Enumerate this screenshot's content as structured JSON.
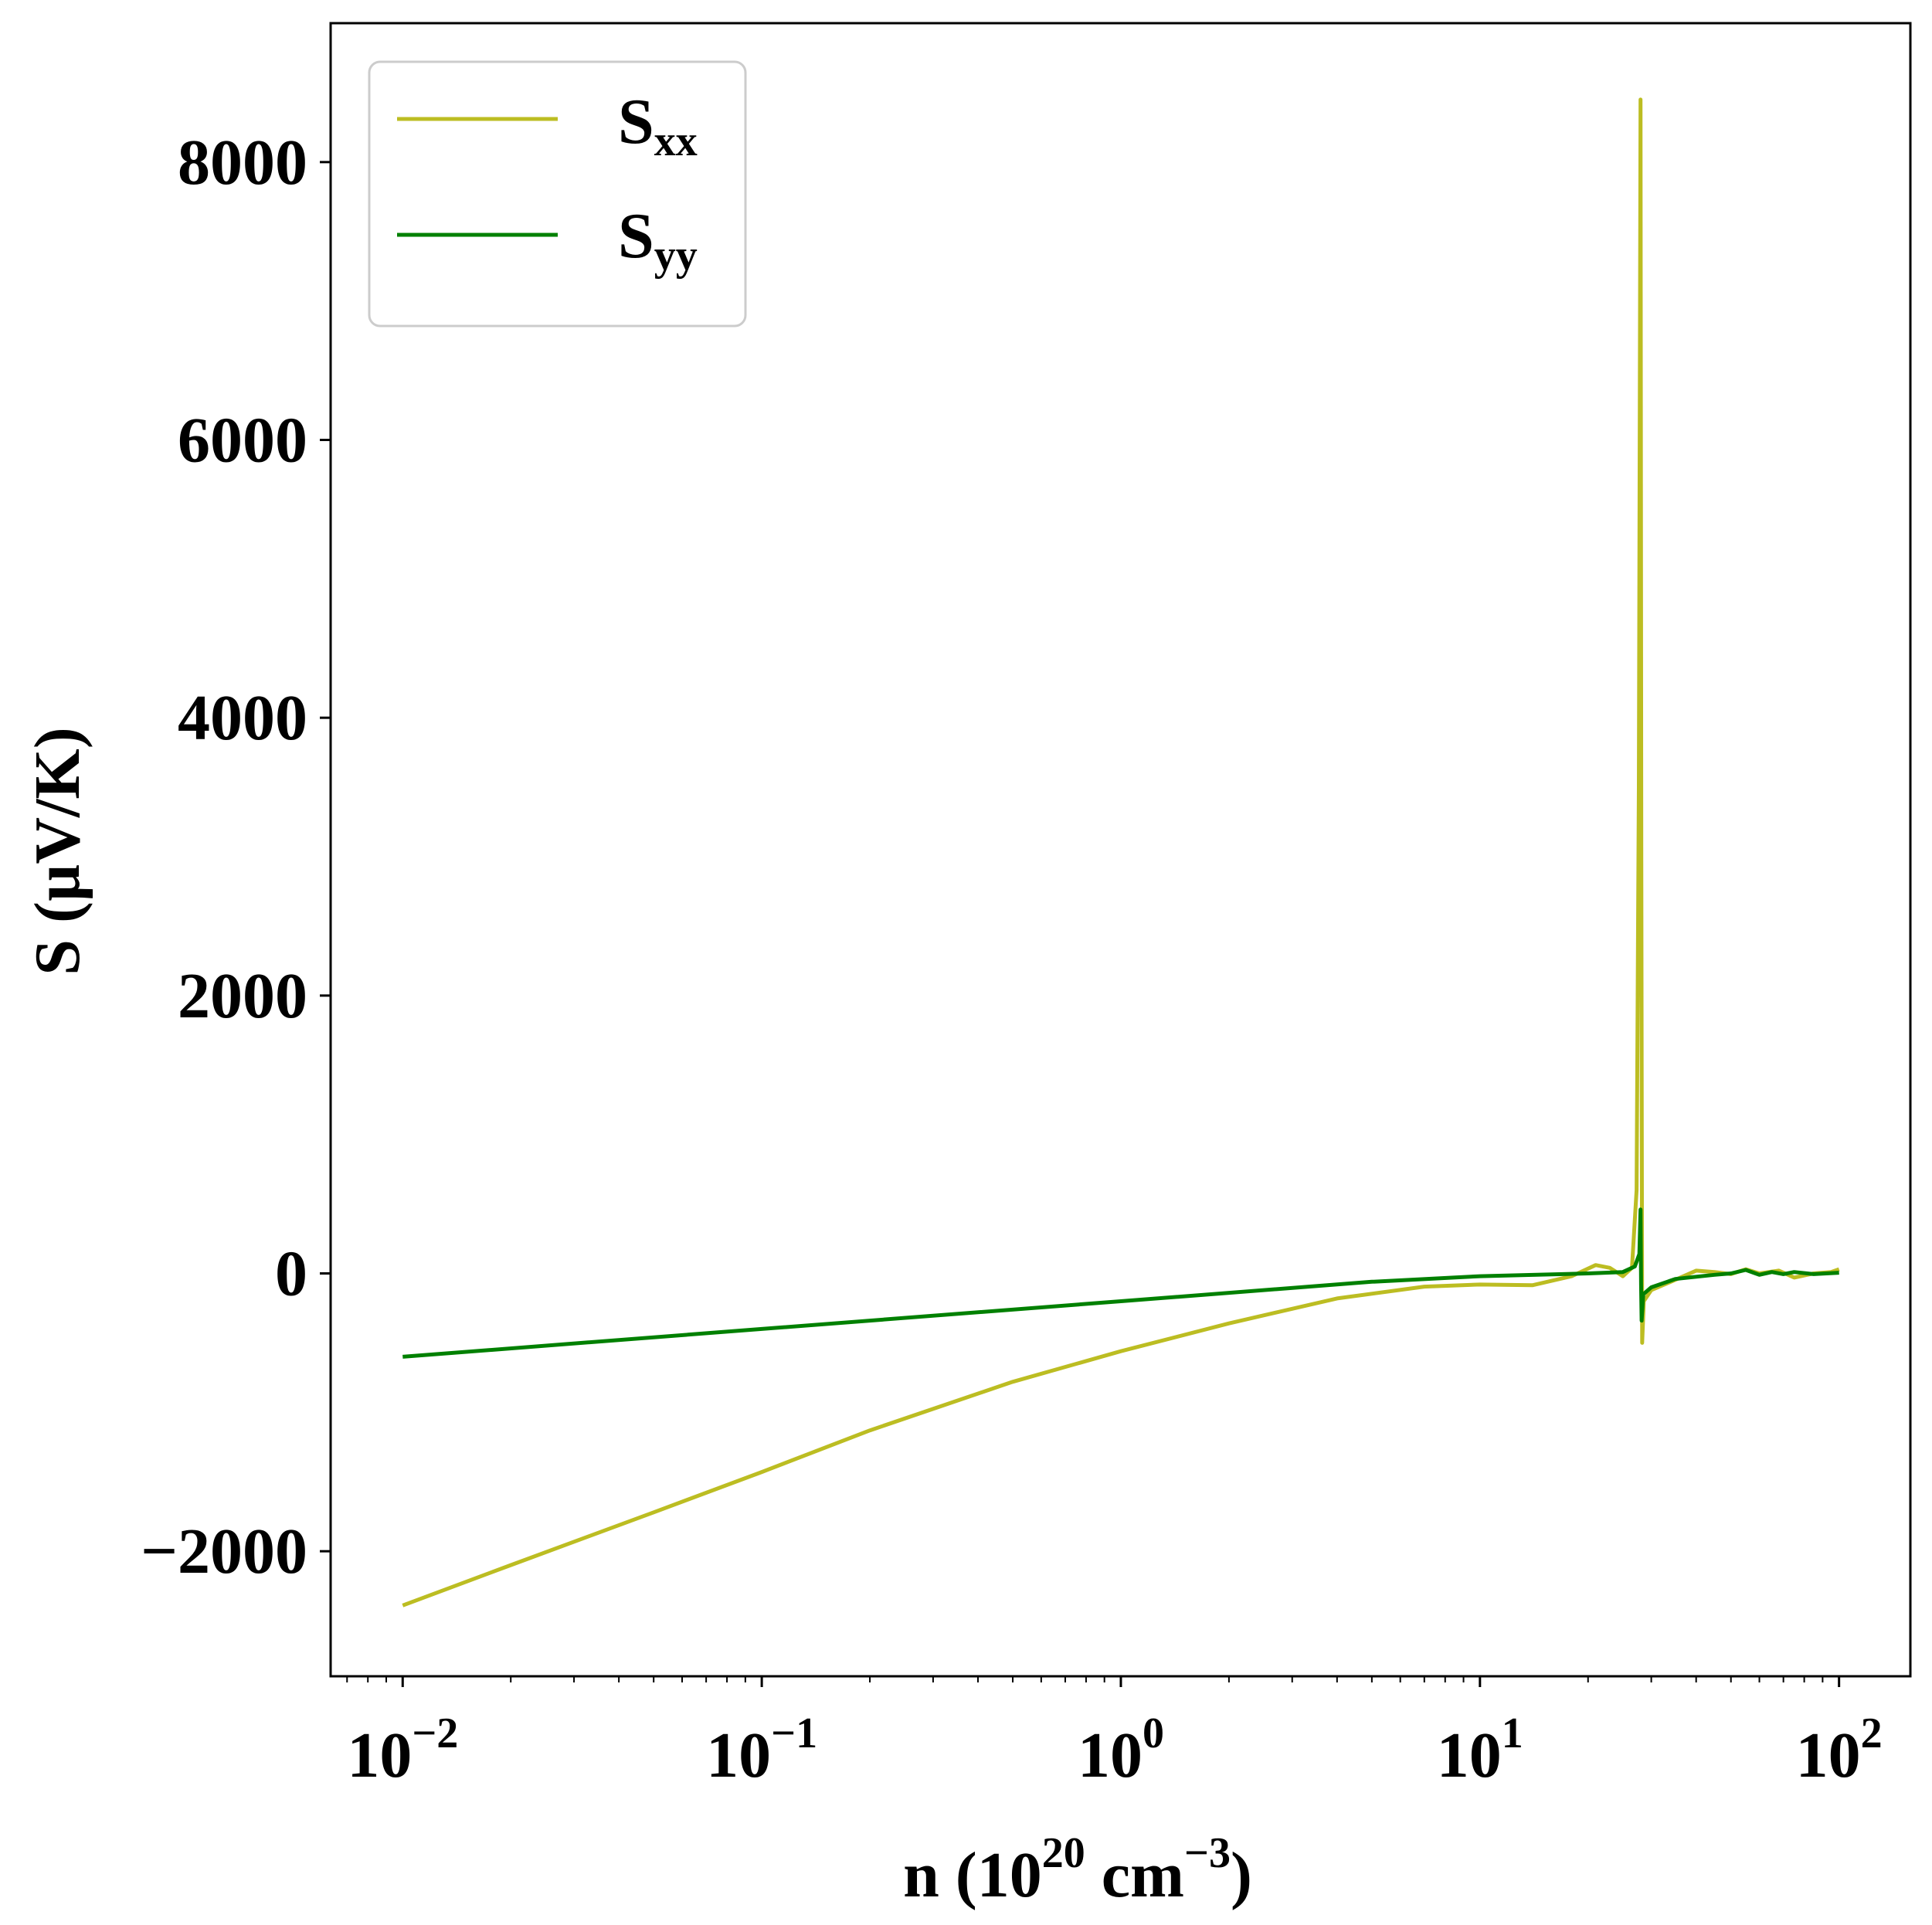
{
  "chart_data": {
    "type": "line",
    "xscale": "log",
    "xlim": [
      0.0063,
      158
    ],
    "ylim": [
      -2900,
      9000
    ],
    "grid": false,
    "legend_position": "upper-left",
    "xlabel": {
      "base": "n (10",
      "exp1": "20",
      "mid": " cm",
      "exp2": "−3",
      "end": ")"
    },
    "ylabel": "S (µV/K)",
    "x_ticks": [
      {
        "value": 0.01,
        "base": "10",
        "exp": "−2"
      },
      {
        "value": 0.1,
        "base": "10",
        "exp": "−1"
      },
      {
        "value": 1,
        "base": "10",
        "exp": "0"
      },
      {
        "value": 10,
        "base": "10",
        "exp": "1"
      },
      {
        "value": 100,
        "base": "10",
        "exp": "2"
      }
    ],
    "y_ticks": [
      {
        "value": -2000,
        "label": "−2000"
      },
      {
        "value": 0,
        "label": "0"
      },
      {
        "value": 2000,
        "label": "2000"
      },
      {
        "value": 4000,
        "label": "4000"
      },
      {
        "value": 6000,
        "label": "6000"
      },
      {
        "value": 8000,
        "label": "8000"
      }
    ],
    "series": [
      {
        "name": "S",
        "subscript": "xx",
        "color": "#bcbd22",
        "points": [
          [
            0.01,
            -2390
          ],
          [
            0.02,
            -2100
          ],
          [
            0.05,
            -1720
          ],
          [
            0.1,
            -1430
          ],
          [
            0.2,
            -1130
          ],
          [
            0.5,
            -780
          ],
          [
            1.0,
            -560
          ],
          [
            2.0,
            -360
          ],
          [
            4.0,
            -180
          ],
          [
            7.0,
            -95
          ],
          [
            10.0,
            -80
          ],
          [
            14.0,
            -85
          ],
          [
            18.0,
            -20
          ],
          [
            21.0,
            60
          ],
          [
            23.0,
            40
          ],
          [
            25.0,
            -20
          ],
          [
            26.5,
            40
          ],
          [
            27.3,
            600
          ],
          [
            27.7,
            3500
          ],
          [
            28.0,
            8450
          ],
          [
            28.15,
            3000
          ],
          [
            28.3,
            -500
          ],
          [
            28.6,
            -200
          ],
          [
            30.0,
            -120
          ],
          [
            34.0,
            -60
          ],
          [
            40.0,
            20
          ],
          [
            45.0,
            10
          ],
          [
            50.0,
            -5
          ],
          [
            55.0,
            30
          ],
          [
            60.0,
            0
          ],
          [
            68.0,
            20
          ],
          [
            75.0,
            -30
          ],
          [
            85.0,
            0
          ],
          [
            95.0,
            10
          ],
          [
            100.0,
            30
          ]
        ]
      },
      {
        "name": "S",
        "subscript": "yy",
        "color": "#008000",
        "points": [
          [
            0.01,
            -600
          ],
          [
            0.1,
            -400
          ],
          [
            1.0,
            -200
          ],
          [
            5.0,
            -60
          ],
          [
            10.0,
            -20
          ],
          [
            20.0,
            0
          ],
          [
            25.0,
            10
          ],
          [
            27.0,
            50
          ],
          [
            27.8,
            140
          ],
          [
            28.0,
            460
          ],
          [
            28.1,
            -80
          ],
          [
            28.2,
            -340
          ],
          [
            28.5,
            -150
          ],
          [
            30.0,
            -100
          ],
          [
            35.0,
            -40
          ],
          [
            45.0,
            -10
          ],
          [
            50.0,
            0
          ],
          [
            55.0,
            25
          ],
          [
            60.0,
            -10
          ],
          [
            65.0,
            10
          ],
          [
            70.0,
            -5
          ],
          [
            75.0,
            10
          ],
          [
            85.0,
            -5
          ],
          [
            100.0,
            5
          ]
        ]
      }
    ]
  }
}
